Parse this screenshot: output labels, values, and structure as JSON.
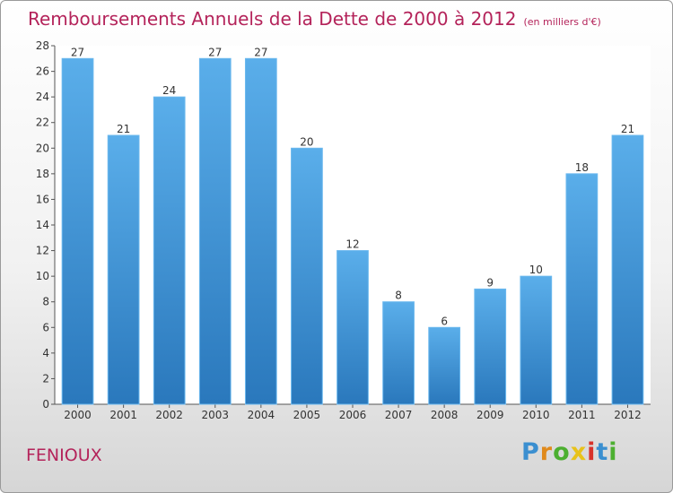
{
  "title": "Remboursements Annuels de la Dette de 2000 à 2012",
  "subtitle": "(en milliers d'€)",
  "place": "FENIOUX",
  "brand": {
    "letters": [
      "P",
      "r",
      "o",
      "x",
      "i",
      "t",
      "i"
    ],
    "colors": [
      "#3b8fd0",
      "#e08a1c",
      "#4caf30",
      "#e8c21a",
      "#d8322a",
      "#3b8fd0",
      "#4caf30"
    ]
  },
  "colors": {
    "bar_top": "#5aaeea",
    "bar_bottom": "#2a78bc",
    "accent": "#b4235a"
  },
  "chart_data": {
    "type": "bar",
    "categories": [
      "2000",
      "2001",
      "2002",
      "2003",
      "2004",
      "2005",
      "2006",
      "2007",
      "2008",
      "2009",
      "2010",
      "2011",
      "2012"
    ],
    "values": [
      27,
      21,
      24,
      27,
      27,
      20,
      12,
      8,
      6,
      9,
      10,
      18,
      21
    ],
    "data_labels": [
      "27",
      "21",
      "24",
      "27",
      "27",
      "20",
      "12",
      "8",
      "6",
      "9",
      "10",
      "18",
      "21"
    ],
    "ylim": [
      0,
      28
    ],
    "yticks": [
      "0",
      "2",
      "4",
      "6",
      "8",
      "10",
      "12",
      "14",
      "16",
      "18",
      "20",
      "22",
      "24",
      "26",
      "28"
    ],
    "grid": false,
    "legend": "none"
  }
}
